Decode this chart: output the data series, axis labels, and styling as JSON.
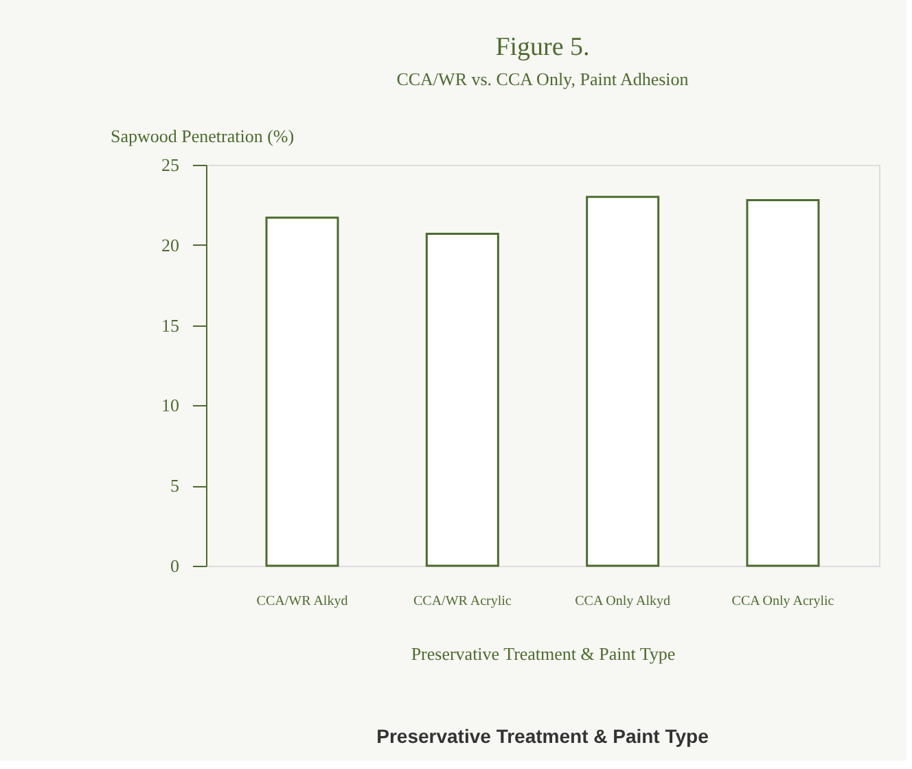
{
  "chart_data": {
    "type": "bar",
    "title": "Figure 5.",
    "subtitle": "CCA/WR vs. CCA Only, Paint Adhesion",
    "ylabel": "Sapwood Penetration (%)",
    "xlabel": "Preservative Treatment & Paint Type",
    "categories": [
      "CCA/WR Alkyd",
      "CCA/WR Acrylic",
      "CCA Only Alkyd",
      "CCA Only Acrylic"
    ],
    "values": [
      21.7,
      20.7,
      23.0,
      22.8
    ],
    "color": "#ffffff",
    "ylim": [
      0,
      25
    ],
    "yticks": [
      0,
      5,
      10,
      15,
      20,
      25
    ],
    "grid": false,
    "annotations": [
      "Preservative Treatment & Paint Type"
    ]
  }
}
